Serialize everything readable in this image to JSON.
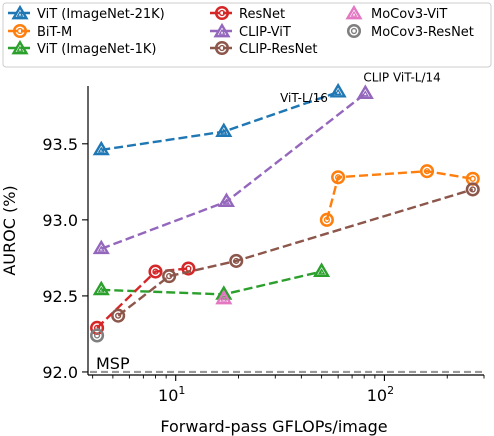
{
  "chart_data": {
    "type": "line",
    "title": "",
    "xlabel": "Forward-pass GFLOPs/image",
    "ylabel": "AUROC (%)",
    "x_scale": "log",
    "xlim": [
      3.8,
      300
    ],
    "ylim": [
      91.98,
      93.88
    ],
    "x_ticks": [
      10,
      100
    ],
    "x_tick_labels": [
      "10¹",
      "10²"
    ],
    "y_ticks": [
      92.0,
      92.5,
      93.0,
      93.5
    ],
    "y_tick_labels": [
      "92.0",
      "92.5",
      "93.0",
      "93.5"
    ],
    "grid": false,
    "legend_position": "top",
    "series": [
      {
        "name": "ViT (ImageNet-21K)",
        "color": "#1f77b4",
        "marker": "triangle",
        "linestyle": "dashed",
        "x": [
          4.4,
          17,
          60
        ],
        "y": [
          93.46,
          93.58,
          93.84
        ]
      },
      {
        "name": "BiT-M",
        "color": "#ff7f0e",
        "marker": "circle",
        "linestyle": "dashed",
        "x": [
          53,
          60,
          160,
          265
        ],
        "y": [
          93.0,
          93.28,
          93.32,
          93.27
        ]
      },
      {
        "name": "ViT (ImageNet-1K)",
        "color": "#2ca02c",
        "marker": "triangle",
        "linestyle": "dashed",
        "x": [
          4.4,
          17,
          50
        ],
        "y": [
          92.54,
          92.51,
          92.66
        ]
      },
      {
        "name": "ResNet",
        "color": "#d62728",
        "marker": "circle",
        "linestyle": "dashed",
        "x": [
          4.2,
          8,
          11.5
        ],
        "y": [
          92.29,
          92.66,
          92.68
        ]
      },
      {
        "name": "CLIP-ViT",
        "color": "#9467bd",
        "marker": "triangle",
        "linestyle": "dashed",
        "x": [
          4.4,
          17.5,
          81
        ],
        "y": [
          92.81,
          93.12,
          93.83
        ]
      },
      {
        "name": "CLIP-ResNet",
        "color": "#8c564b",
        "marker": "circle",
        "linestyle": "dashed",
        "x": [
          5.3,
          9.3,
          19.5,
          265
        ],
        "y": [
          92.37,
          92.63,
          92.73,
          93.2
        ]
      },
      {
        "name": "MoCov3-ViT",
        "color": "#e377c2",
        "marker": "triangle",
        "linestyle": "none",
        "x": [
          17
        ],
        "y": [
          92.48
        ]
      },
      {
        "name": "MoCov3-ResNet",
        "color": "#7f7f7f",
        "marker": "circle",
        "linestyle": "none",
        "x": [
          4.2
        ],
        "y": [
          92.24
        ]
      }
    ],
    "reference_lines": [
      {
        "label": "MSP",
        "y": 92.0,
        "color": "#999999",
        "linestyle": "dashed"
      }
    ],
    "annotations": [
      {
        "text": "ViT-L/16",
        "x": 60,
        "y": 93.84
      },
      {
        "text": "CLIP ViT-L/14",
        "x": 81,
        "y": 93.83
      }
    ]
  }
}
